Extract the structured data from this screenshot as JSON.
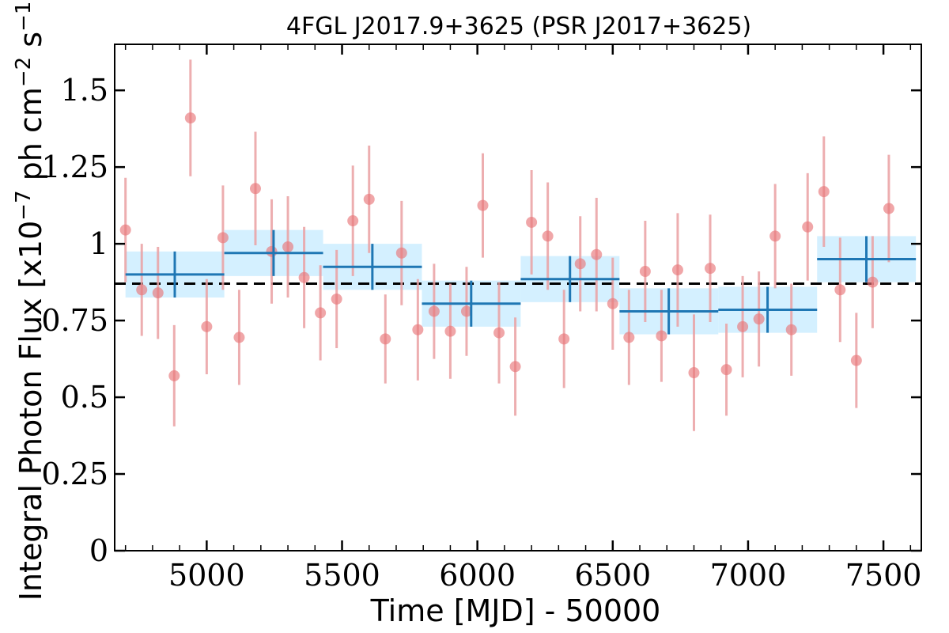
{
  "chart_data": {
    "type": "scatter",
    "title": "4FGL J2017.9+3625 (PSR J2017+3625)",
    "xlabel": "Time [MJD] - 50000",
    "ylabel_main": "Integral Photon Flux [x10",
    "ylabel_exp1": "−7",
    "ylabel_mid": " ph cm",
    "ylabel_exp2": "−2",
    "ylabel_s": " s",
    "ylabel_exp3": "−1",
    "ylabel_end": "]",
    "xlim": [
      4660,
      7640
    ],
    "ylim": [
      0,
      1.65
    ],
    "xticks": [
      5000,
      5500,
      6000,
      6500,
      7000,
      7500
    ],
    "xtick_labels": [
      "5000",
      "5500",
      "6000",
      "6500",
      "7000",
      "7500"
    ],
    "yticks": [
      0,
      0.25,
      0.5,
      0.75,
      1,
      1.25,
      1.5
    ],
    "ytick_labels": [
      "0",
      "0.25",
      "0.5",
      "0.75",
      "1",
      "1.25",
      "1.5"
    ],
    "mean_flux": 0.87,
    "colors": {
      "points": "#e8767a",
      "points_err": "#eaa0a2",
      "bins_line": "#1f77b4",
      "bins_band": "#cfeeff",
      "mean_line": "#000000"
    },
    "series": [
      {
        "kind": "short-timescale",
        "x": [
          4700,
          4760,
          4820,
          4880,
          4940,
          5000,
          5060,
          5120,
          5180,
          5240,
          5300,
          5360,
          5420,
          5480,
          5540,
          5600,
          5660,
          5720,
          5780,
          5840,
          5900,
          5960,
          6020,
          6080,
          6140,
          6200,
          6260,
          6320,
          6380,
          6440,
          6500,
          6560,
          6620,
          6680,
          6740,
          6800,
          6860,
          6920,
          6980,
          7040,
          7100,
          7160,
          7220,
          7280,
          7340,
          7400,
          7460,
          7520
        ],
        "y": [
          1.045,
          0.85,
          0.84,
          0.57,
          1.41,
          0.73,
          1.02,
          0.695,
          1.18,
          0.975,
          0.99,
          0.89,
          0.775,
          0.82,
          1.075,
          1.145,
          0.69,
          0.97,
          0.72,
          0.78,
          0.715,
          0.78,
          1.125,
          0.71,
          0.6,
          1.07,
          1.025,
          0.69,
          0.935,
          0.965,
          0.805,
          0.695,
          0.91,
          0.7,
          0.915,
          0.58,
          0.92,
          0.59,
          0.73,
          0.755,
          1.025,
          0.72,
          1.055,
          1.17,
          0.85,
          0.62,
          0.875,
          1.115
        ],
        "yerr": [
          0.17,
          0.15,
          0.15,
          0.165,
          0.19,
          0.155,
          0.17,
          0.155,
          0.185,
          0.17,
          0.165,
          0.165,
          0.155,
          0.16,
          0.18,
          0.175,
          0.145,
          0.17,
          0.165,
          0.155,
          0.155,
          0.145,
          0.17,
          0.165,
          0.16,
          0.17,
          0.175,
          0.16,
          0.155,
          0.185,
          0.15,
          0.155,
          0.165,
          0.15,
          0.185,
          0.19,
          0.175,
          0.15,
          0.165,
          0.155,
          0.17,
          0.15,
          0.175,
          0.18,
          0.17,
          0.155,
          0.15,
          0.175
        ]
      },
      {
        "kind": "long-timescale",
        "x_lo": [
          4700,
          5065,
          5430,
          5795,
          6160,
          6525,
          6890,
          7255
        ],
        "x_hi": [
          5065,
          5430,
          5795,
          6160,
          6525,
          6890,
          7255,
          7620
        ],
        "x": [
          4882,
          5247,
          5612,
          5977,
          6342,
          6707,
          7072,
          7437
        ],
        "y": [
          0.9,
          0.97,
          0.925,
          0.805,
          0.885,
          0.78,
          0.785,
          0.95
        ],
        "yerr": [
          0.075,
          0.075,
          0.075,
          0.075,
          0.075,
          0.075,
          0.075,
          0.075
        ]
      }
    ]
  }
}
